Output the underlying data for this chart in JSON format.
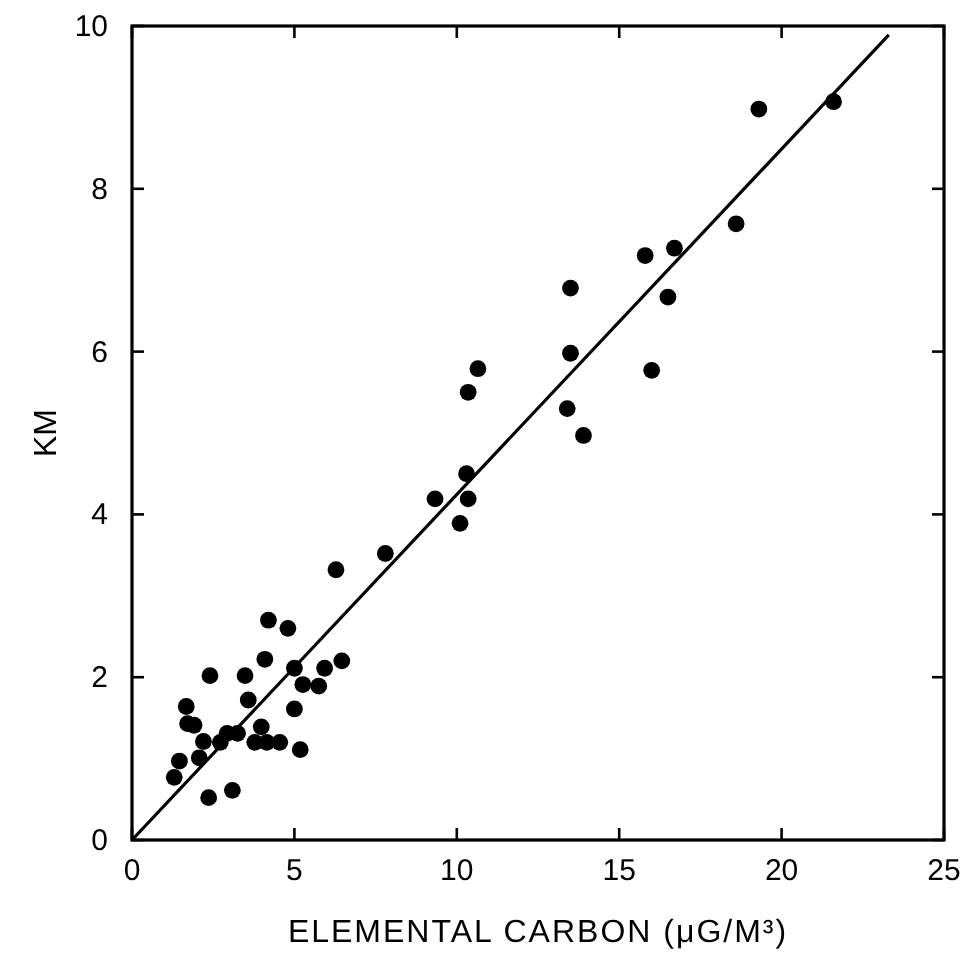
{
  "chart_data": {
    "type": "scatter",
    "xlabel": "ELEMENTAL CARBON (μG/M³)",
    "ylabel": "KM",
    "xlim": [
      0,
      25
    ],
    "ylim": [
      0,
      10
    ],
    "xticks": [
      0,
      5,
      10,
      15,
      20,
      25
    ],
    "yticks": [
      0,
      2,
      4,
      6,
      8,
      10
    ],
    "grid": false,
    "series": [
      {
        "color": "#000000",
        "marker": "circle",
        "x": [
          19.3,
          21.6,
          18.6,
          15.8,
          16.7,
          13.5,
          16.5,
          13.5,
          16.0,
          10.65,
          10.35,
          13.4,
          13.9,
          10.3,
          9.33,
          10.35,
          10.1,
          7.8,
          6.28,
          4.2,
          4.8,
          4.09,
          5.0,
          6.46,
          5.93,
          2.4,
          3.48,
          5.26,
          5.75,
          3.58,
          5.0,
          1.67,
          1.71,
          1.91,
          2.2,
          2.72,
          2.93,
          3.25,
          3.98,
          3.78,
          4.15,
          4.55,
          5.18,
          1.46,
          2.07,
          1.3,
          2.36,
          3.09
        ],
        "values": [
          8.98,
          9.07,
          7.57,
          7.18,
          7.27,
          6.78,
          6.67,
          5.98,
          5.77,
          5.79,
          5.5,
          5.3,
          4.97,
          4.5,
          4.19,
          4.19,
          3.89,
          3.52,
          3.32,
          2.7,
          2.6,
          2.22,
          2.11,
          2.2,
          2.11,
          2.02,
          2.02,
          1.91,
          1.89,
          1.72,
          1.61,
          1.64,
          1.43,
          1.41,
          1.21,
          1.2,
          1.31,
          1.31,
          1.39,
          1.2,
          1.2,
          1.2,
          1.11,
          0.97,
          1.01,
          0.77,
          0.52,
          0.61
        ]
      },
      {
        "type": "line",
        "color": "#000000",
        "x": [
          0,
          23.3
        ],
        "values": [
          0,
          9.89
        ],
        "line_style": "solid"
      }
    ]
  }
}
